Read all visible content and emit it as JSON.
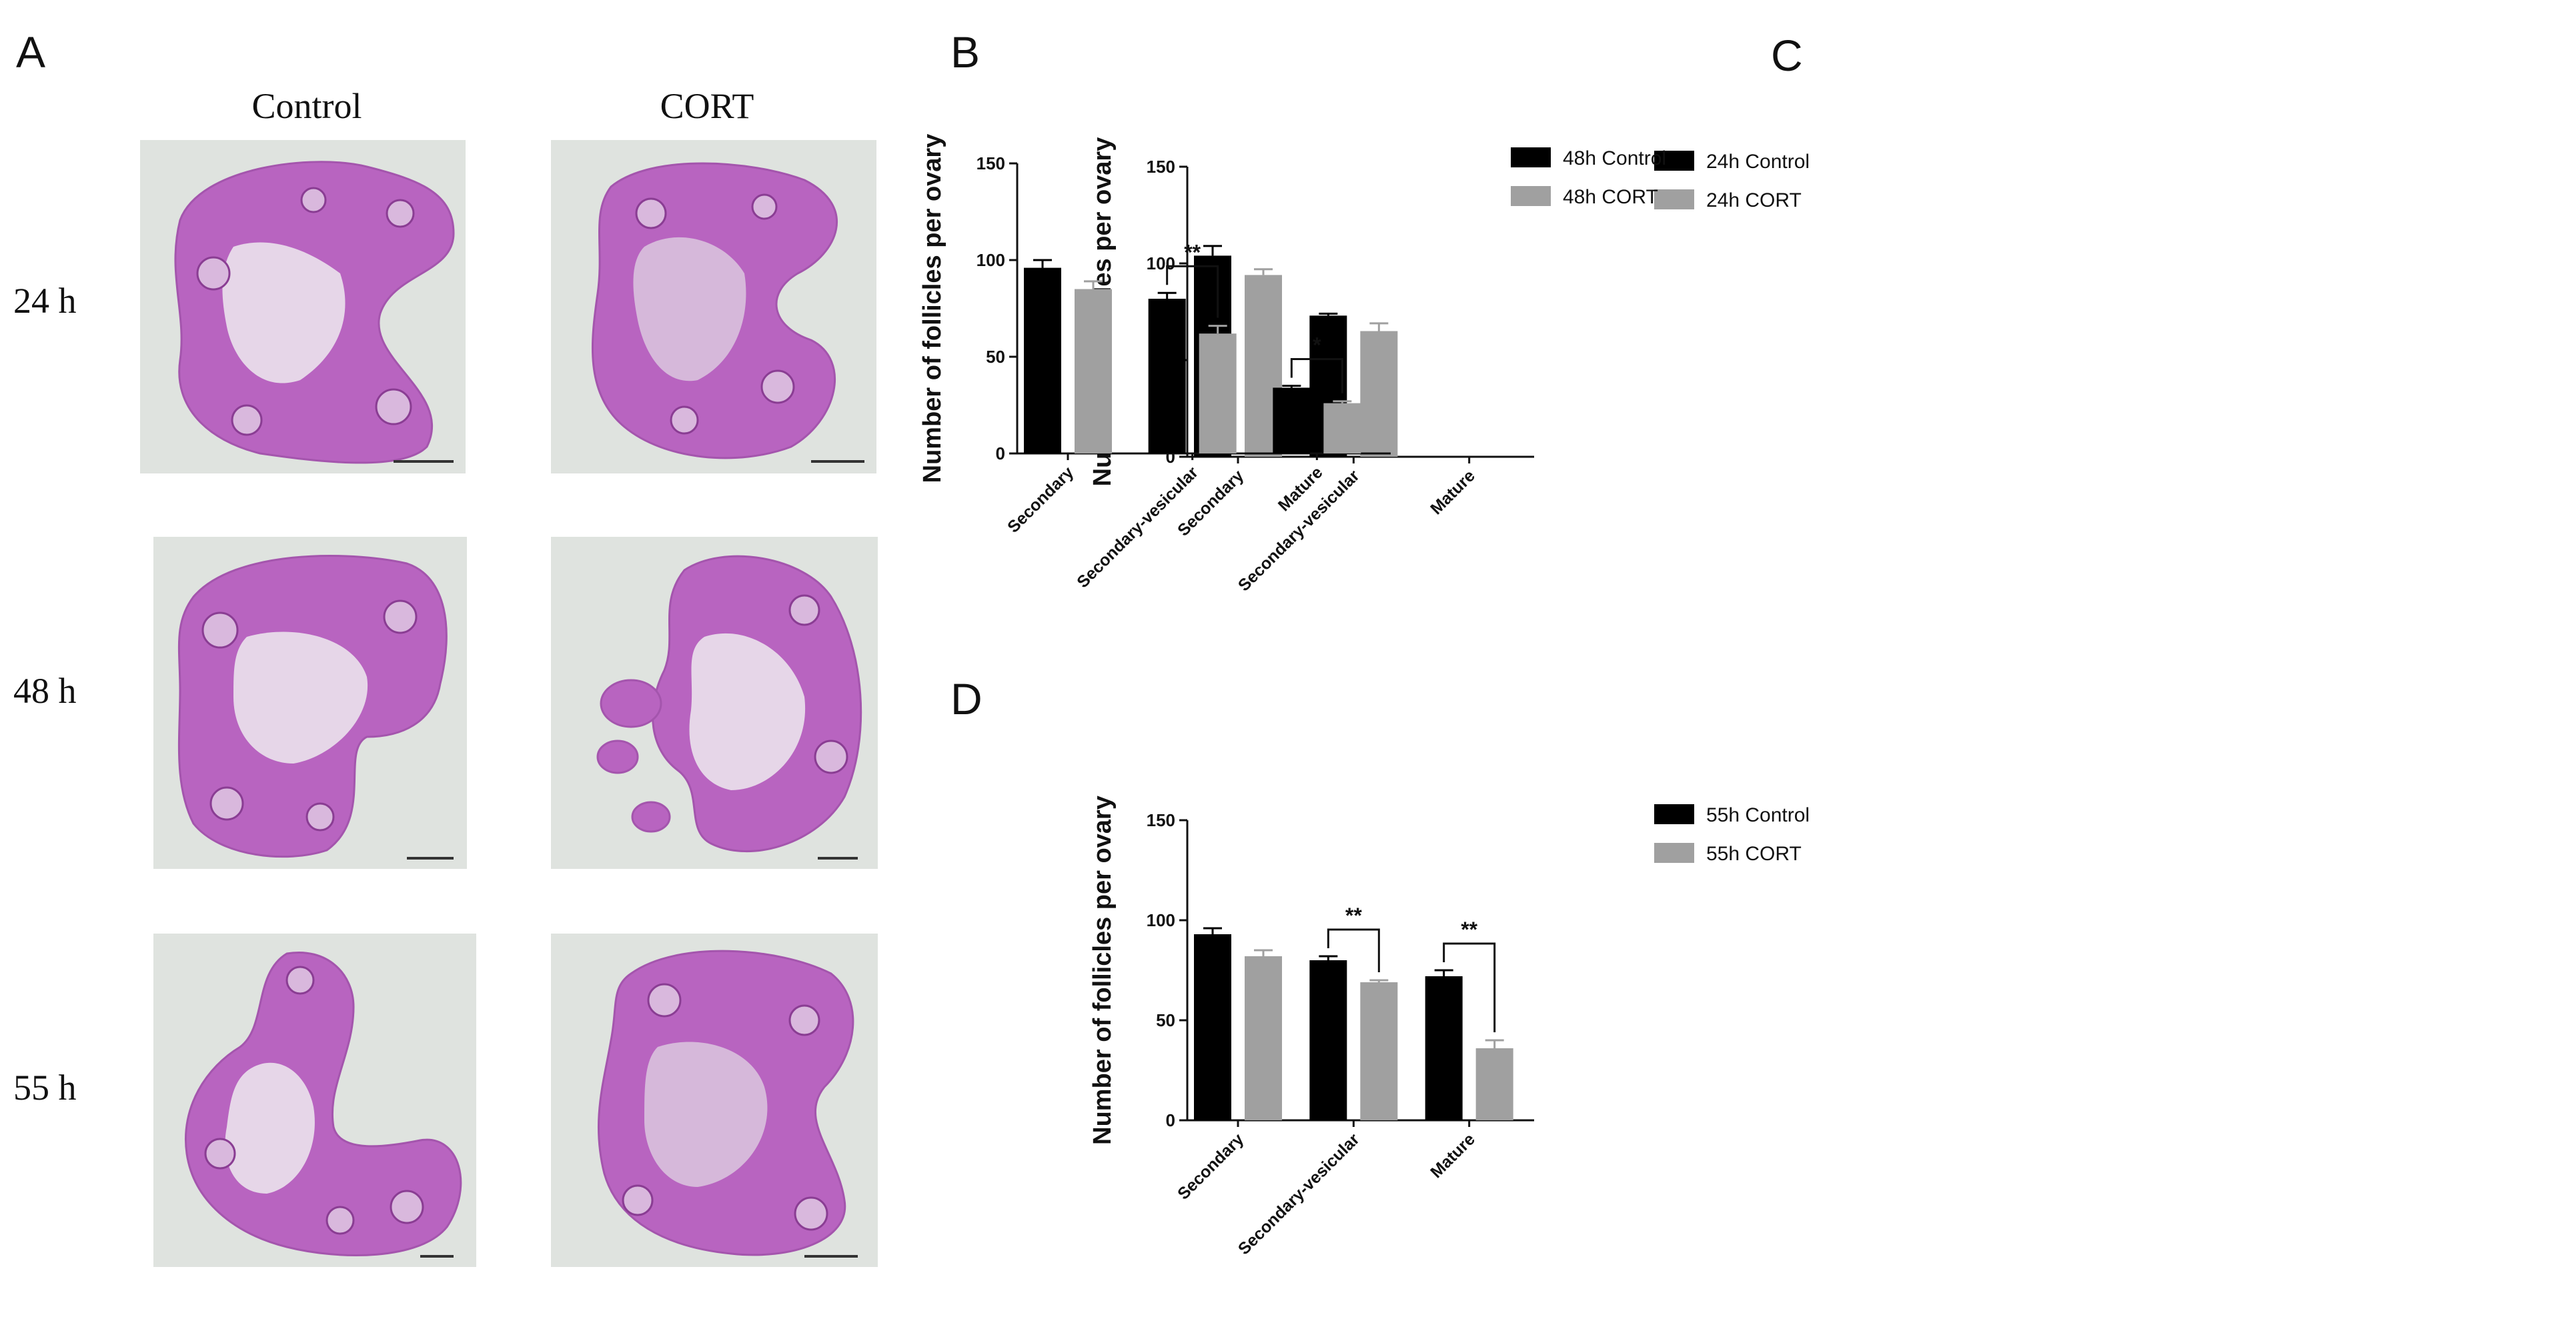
{
  "panel_a": {
    "letter": "A",
    "col_headers": [
      "Control",
      "CORT"
    ],
    "row_headers": [
      "24 h",
      "48 h",
      "55 h"
    ],
    "tissue_color": "#b864c0",
    "background_color": "#dfe3df"
  },
  "chart_data": [
    {
      "panel": "B",
      "type": "bar",
      "ylabel": "Number of follicles per ovary",
      "ylim": [
        0,
        150
      ],
      "yticks": [
        0,
        50,
        100,
        150
      ],
      "categories": [
        "Secondary",
        "Secondary-vesicular",
        "Mature"
      ],
      "series": [
        {
          "name": "24h Control",
          "color": "#000000",
          "values": [
            104,
            73,
            null
          ],
          "errors": [
            5,
            1,
            null
          ]
        },
        {
          "name": "24h CORT",
          "color": "#a0a0a0",
          "values": [
            94,
            65,
            null
          ],
          "errors": [
            3,
            4,
            null
          ]
        }
      ],
      "significance": [],
      "legend": "top-right"
    },
    {
      "panel": "C",
      "type": "bar",
      "ylabel": "Number of follicles per ovary",
      "ylim": [
        0,
        150
      ],
      "yticks": [
        0,
        50,
        100,
        150
      ],
      "categories": [
        "Secondary",
        "Secondary-vesicular",
        "Mature"
      ],
      "series": [
        {
          "name": "48h Control",
          "color": "#000000",
          "values": [
            96,
            80,
            34
          ],
          "errors": [
            4,
            3,
            1
          ]
        },
        {
          "name": "48h CORT",
          "color": "#a0a0a0",
          "values": [
            85,
            62,
            26
          ],
          "errors": [
            4,
            4,
            1
          ]
        }
      ],
      "significance": [
        {
          "category": 1,
          "label": "**"
        },
        {
          "category": 2,
          "label": "*"
        }
      ],
      "legend": "top-right"
    },
    {
      "panel": "D",
      "type": "bar",
      "ylabel": "Number of follicles per ovary",
      "ylim": [
        0,
        150
      ],
      "yticks": [
        0,
        50,
        100,
        150
      ],
      "categories": [
        "Secondary",
        "Secondary-vesicular",
        "Mature"
      ],
      "series": [
        {
          "name": "55h Control",
          "color": "#000000",
          "values": [
            93,
            80,
            72
          ],
          "errors": [
            3,
            2,
            3
          ]
        },
        {
          "name": "55h CORT",
          "color": "#a0a0a0",
          "values": [
            82,
            69,
            36
          ],
          "errors": [
            3,
            1,
            4
          ]
        }
      ],
      "significance": [
        {
          "category": 1,
          "label": "**"
        },
        {
          "category": 2,
          "label": "**"
        }
      ],
      "legend": "top-right"
    }
  ]
}
